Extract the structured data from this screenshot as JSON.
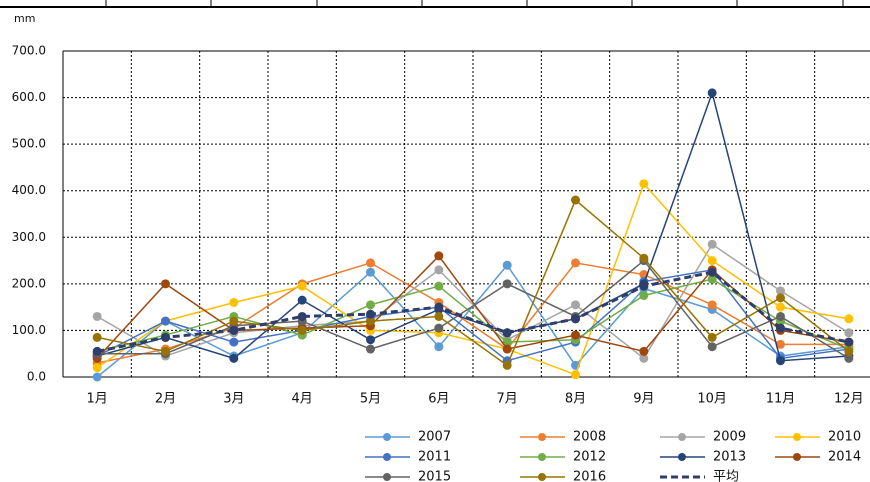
{
  "chart_data": {
    "type": "line",
    "y_unit": "mm",
    "categories": [
      "1月",
      "2月",
      "3月",
      "4月",
      "5月",
      "6月",
      "7月",
      "8月",
      "9月",
      "10月",
      "11月",
      "12月"
    ],
    "ylim": [
      0,
      700
    ],
    "yticks": [
      {
        "value": 0,
        "label": "0.0"
      },
      {
        "value": 100,
        "label": "100.0"
      },
      {
        "value": 200,
        "label": "200.0"
      },
      {
        "value": 300,
        "label": "300.0"
      },
      {
        "value": 400,
        "label": "400.0"
      },
      {
        "value": 500,
        "label": "500.0"
      },
      {
        "value": 600,
        "label": "600.0"
      },
      {
        "value": 700,
        "label": "700.0"
      }
    ],
    "grid": true,
    "series": [
      {
        "name": "2007",
        "color": "#5b9bd5",
        "values": [
          0,
          120,
          45,
          95,
          225,
          65,
          240,
          25,
          190,
          145,
          45,
          65
        ]
      },
      {
        "name": "2008",
        "color": "#ed7d31",
        "values": [
          30,
          60,
          105,
          200,
          245,
          160,
          60,
          245,
          220,
          155,
          70,
          70
        ]
      },
      {
        "name": "2009",
        "color": "#a5a5a5",
        "values": [
          130,
          45,
          95,
          110,
          120,
          230,
          80,
          155,
          40,
          285,
          185,
          95
        ]
      },
      {
        "name": "2010",
        "color": "#ffc000",
        "values": [
          20,
          120,
          160,
          195,
          100,
          95,
          60,
          5,
          415,
          250,
          150,
          125
        ]
      },
      {
        "name": "2011",
        "color": "#4472c4",
        "values": [
          45,
          120,
          75,
          100,
          130,
          150,
          35,
          75,
          205,
          230,
          40,
          60
        ]
      },
      {
        "name": "2012",
        "color": "#70ad47",
        "values": [
          55,
          90,
          130,
          90,
          155,
          195,
          75,
          80,
          175,
          210,
          120,
          60
        ]
      },
      {
        "name": "2013",
        "color": "#264478",
        "values": [
          45,
          85,
          40,
          165,
          80,
          145,
          95,
          125,
          200,
          610,
          35,
          45
        ]
      },
      {
        "name": "2014",
        "color": "#9e480e",
        "values": [
          40,
          200,
          100,
          105,
          110,
          260,
          60,
          90,
          55,
          230,
          100,
          75
        ]
      },
      {
        "name": "2015",
        "color": "#636363",
        "values": [
          50,
          50,
          110,
          120,
          60,
          105,
          200,
          130,
          250,
          65,
          130,
          40
        ]
      },
      {
        "name": "2016",
        "color": "#997300",
        "values": [
          85,
          55,
          120,
          100,
          120,
          130,
          25,
          380,
          255,
          85,
          170,
          55
        ]
      },
      {
        "name": "平均",
        "color": "#2f3e6b",
        "dashed": true,
        "values": [
          55,
          85,
          100,
          130,
          135,
          150,
          95,
          125,
          195,
          225,
          105,
          75
        ]
      }
    ]
  }
}
